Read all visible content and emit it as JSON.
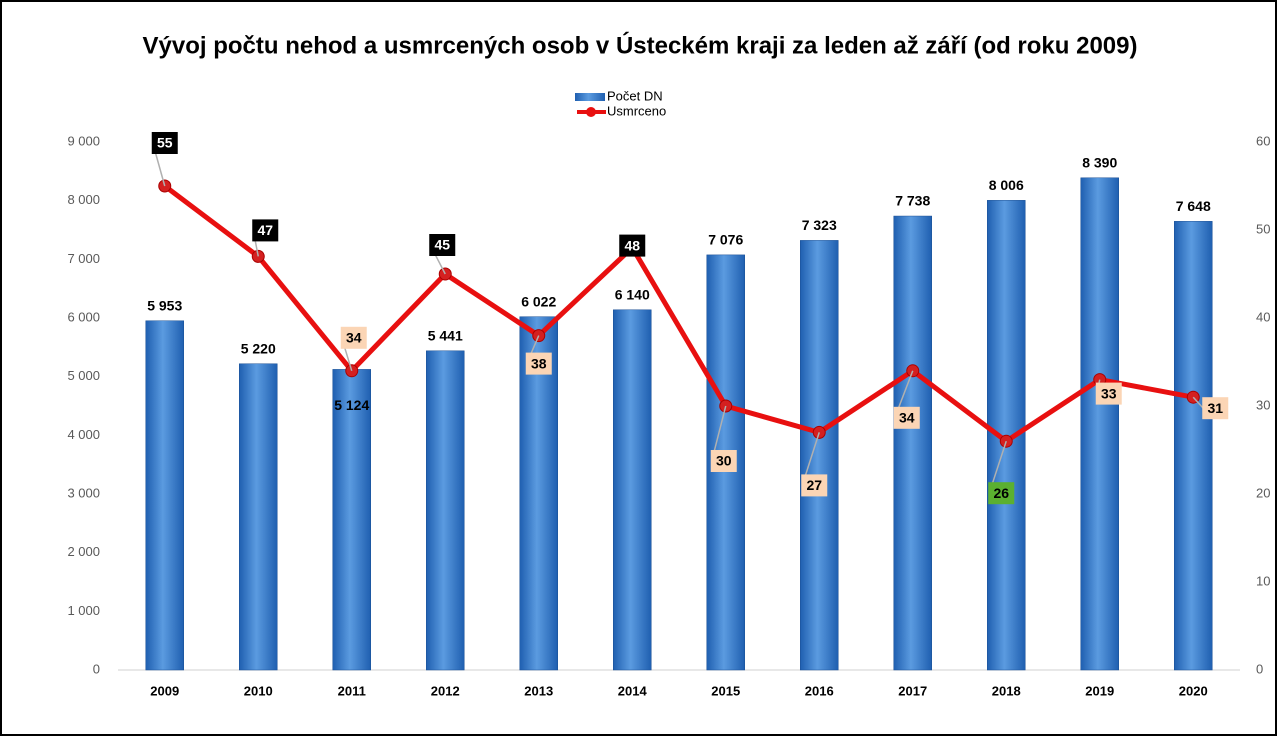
{
  "chart_data": {
    "type": "bar_line",
    "title": "Vývoj počtu nehod a usmrcených osob v Ústeckém kraji za leden až září (od roku 2009)",
    "categories": [
      "2009",
      "2010",
      "2011",
      "2012",
      "2013",
      "2014",
      "2015",
      "2016",
      "2017",
      "2018",
      "2019",
      "2020"
    ],
    "series": [
      {
        "name": "Počet DN",
        "type": "bar",
        "color": "#2e75c6",
        "values": [
          5953,
          5220,
          5124,
          5441,
          6022,
          6140,
          7076,
          7323,
          7738,
          8006,
          8390,
          7648
        ],
        "value_labels": [
          "5 953",
          "5 220",
          "5 124",
          "5 441",
          "6 022",
          "6 140",
          "7 076",
          "7 323",
          "7 738",
          "8 006",
          "8 390",
          "7 648"
        ]
      },
      {
        "name": "Usmrceno",
        "type": "line",
        "axis": "y2",
        "color": "#e81010",
        "values": [
          55,
          47,
          34,
          45,
          38,
          48,
          30,
          27,
          34,
          26,
          33,
          31
        ],
        "label_colors": [
          "#000000",
          "#000000",
          "#fbd5b5",
          "#000000",
          "#fbd5b5",
          "#000000",
          "#fbd5b5",
          "#fbd5b5",
          "#fbd5b5",
          "#5bb030",
          "#fbd5b5",
          "#fbd5b5"
        ]
      }
    ],
    "ylim": [
      0,
      9000
    ],
    "yticks": [
      {
        "value": 0,
        "label": "0"
      },
      {
        "value": 1000,
        "label": "1 000"
      },
      {
        "value": 2000,
        "label": "2 000"
      },
      {
        "value": 3000,
        "label": "3 000"
      },
      {
        "value": 4000,
        "label": "4 000"
      },
      {
        "value": 5000,
        "label": "5 000"
      },
      {
        "value": 6000,
        "label": "6 000"
      },
      {
        "value": 7000,
        "label": "7 000"
      },
      {
        "value": 8000,
        "label": "8 000"
      },
      {
        "value": 9000,
        "label": "9 000"
      }
    ],
    "y2lim": [
      0,
      60
    ],
    "y2ticks": [
      0,
      10,
      20,
      30,
      40,
      50,
      60
    ],
    "grid": false
  }
}
